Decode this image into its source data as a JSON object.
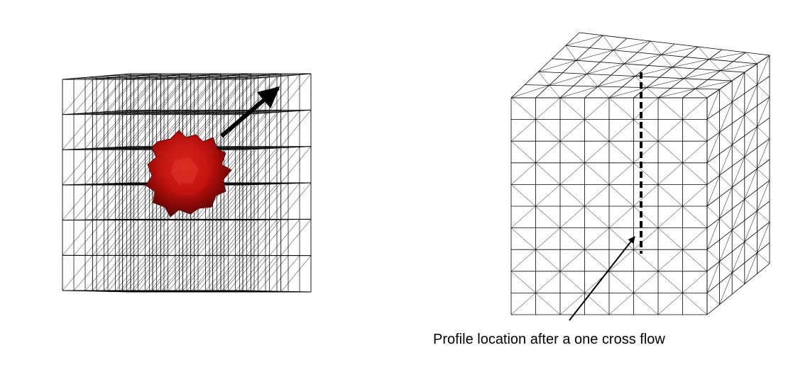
{
  "figure": {
    "caption": "Profile location after a one cross flow"
  }
}
